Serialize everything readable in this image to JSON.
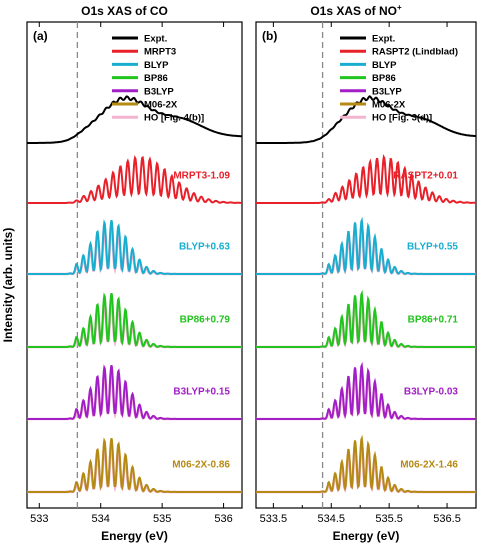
{
  "y_axis_label": "Intensity (arb. units)",
  "colors": {
    "expt": "#000000",
    "mrpt": "#e8202a",
    "blyp": "#19aed0",
    "bp86": "#22c41e",
    "b3lyp": "#a21ec6",
    "m062x": "#b58a14",
    "ho": "#f4b3cf",
    "dashed": "#8a8a8a"
  },
  "chart_data": [
    {
      "type": "line",
      "panel": "(a)",
      "title": "O1s XAS of CO",
      "xlabel": "Energy (eV)",
      "ylabel": "Intensity (arb. units)",
      "xlim": [
        532.8,
        536.3
      ],
      "xticks": [
        533,
        534,
        535,
        536
      ],
      "xtick_labels": [
        "533",
        "534",
        "535",
        "536"
      ],
      "dashed_line_x": 533.62,
      "grid": false,
      "legend_position": "top-right",
      "legend": [
        "Expt.",
        "MRPT3",
        "BLYP",
        "BP86",
        "B3LYP",
        "M06-2X",
        "HO [Fig. 4(b)]"
      ],
      "traces": [
        {
          "label": "",
          "color_key": "expt",
          "offset": 5,
          "kind": "expt",
          "onset": 533.6,
          "center": 534.4
        },
        {
          "label": "MRPT3-1.09",
          "color_key": "mrpt",
          "offset": 4,
          "kind": "calc",
          "onset": 533.6,
          "center": 534.3
        },
        {
          "label": "BLYP+0.63",
          "color_key": "blyp",
          "offset": 3,
          "kind": "calc",
          "onset": 533.6,
          "center": 534.15
        },
        {
          "label": "BP86+0.79",
          "color_key": "bp86",
          "offset": 2,
          "kind": "calc",
          "onset": 533.6,
          "center": 534.15
        },
        {
          "label": "B3LYP+0.15",
          "color_key": "b3lyp",
          "offset": 1,
          "kind": "calc",
          "onset": 533.6,
          "center": 534.15
        },
        {
          "label": "M06-2X-0.86",
          "color_key": "m062x",
          "offset": 0,
          "kind": "calc",
          "onset": 533.6,
          "center": 534.15
        }
      ]
    },
    {
      "type": "line",
      "panel": "(b)",
      "title": "O1s XAS of NO",
      "title_sup": "+",
      "xlabel": "Energy (eV)",
      "ylabel": "",
      "xlim": [
        533.2,
        537.0
      ],
      "xticks": [
        533.5,
        534.5,
        535.5,
        536.5
      ],
      "xtick_labels": [
        "533.5",
        "534.5",
        "535.5",
        "536.5"
      ],
      "minor_xticks": [
        534,
        535,
        536
      ],
      "dashed_line_x": 534.35,
      "grid": false,
      "legend_position": "top-right",
      "legend": [
        "Expt.",
        "RASPT2 (Lindblad)",
        "BLYP",
        "BP86",
        "B3LYP",
        "M06-2X",
        "HO [Fig. 3(d)]"
      ],
      "traces": [
        {
          "label": "",
          "color_key": "expt",
          "offset": 5,
          "kind": "expt",
          "onset": 534.45,
          "center": 535.15
        },
        {
          "label": "RASPT2+0.01",
          "color_key": "mrpt",
          "offset": 4,
          "kind": "calc",
          "onset": 534.45,
          "center": 535.05
        },
        {
          "label": "BLYP+0.55",
          "color_key": "blyp",
          "offset": 3,
          "kind": "calc",
          "onset": 534.45,
          "center": 535.0
        },
        {
          "label": "BP86+0.71",
          "color_key": "bp86",
          "offset": 2,
          "kind": "calc",
          "onset": 534.45,
          "center": 535.0
        },
        {
          "label": "B3LYP-0.03",
          "color_key": "b3lyp",
          "offset": 1,
          "kind": "calc",
          "onset": 534.45,
          "center": 535.0
        },
        {
          "label": "M06-2X-1.46",
          "color_key": "m062x",
          "offset": 0,
          "kind": "calc",
          "onset": 534.45,
          "center": 535.0
        }
      ]
    }
  ]
}
